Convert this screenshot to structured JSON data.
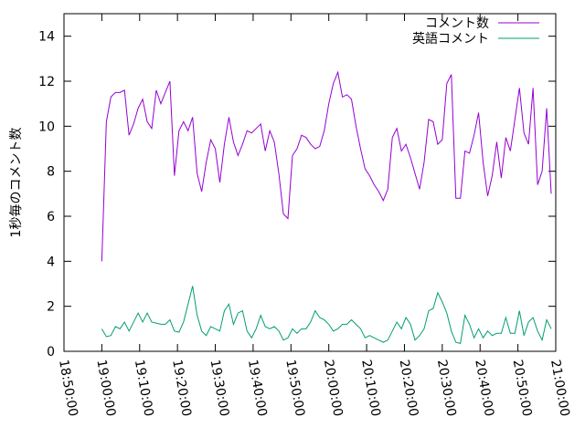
{
  "chart_data": {
    "type": "line",
    "y_label": "1秒毎のコメント数",
    "x": [
      "19:00:00",
      "19:01:12",
      "19:02:24",
      "19:03:36",
      "19:04:48",
      "19:06:00",
      "19:07:12",
      "19:08:24",
      "19:09:36",
      "19:10:48",
      "19:12:00",
      "19:13:12",
      "19:14:24",
      "19:15:36",
      "19:16:48",
      "19:18:00",
      "19:19:12",
      "19:20:24",
      "19:21:36",
      "19:22:48",
      "19:24:00",
      "19:25:12",
      "19:26:24",
      "19:27:36",
      "19:28:48",
      "19:30:00",
      "19:31:12",
      "19:32:24",
      "19:33:36",
      "19:34:48",
      "19:36:00",
      "19:37:12",
      "19:38:24",
      "19:39:36",
      "19:40:48",
      "19:42:00",
      "19:43:12",
      "19:44:24",
      "19:45:36",
      "19:46:48",
      "19:48:00",
      "19:49:12",
      "19:50:24",
      "19:51:36",
      "19:52:48",
      "19:54:00",
      "19:55:12",
      "19:56:24",
      "19:57:36",
      "19:58:48",
      "20:00:00",
      "20:01:12",
      "20:02:24",
      "20:03:36",
      "20:04:48",
      "20:06:00",
      "20:07:12",
      "20:08:24",
      "20:09:36",
      "20:10:48",
      "20:12:00",
      "20:13:12",
      "20:14:24",
      "20:15:36",
      "20:16:48",
      "20:18:00",
      "20:19:12",
      "20:20:24",
      "20:21:36",
      "20:22:48",
      "20:24:00",
      "20:25:12",
      "20:26:24",
      "20:27:36",
      "20:28:48",
      "20:30:00",
      "20:31:12",
      "20:32:24",
      "20:33:36",
      "20:34:48",
      "20:36:00",
      "20:37:12",
      "20:38:24",
      "20:39:36",
      "20:40:48",
      "20:42:00",
      "20:43:12",
      "20:44:24",
      "20:45:36",
      "20:46:48",
      "20:48:00",
      "20:49:12",
      "20:50:24",
      "20:51:36",
      "20:52:48",
      "20:54:00",
      "20:55:12",
      "20:56:24",
      "20:57:36",
      "20:58:48"
    ],
    "series": [
      {
        "name": "コメント数",
        "color": "#9400d3",
        "values": [
          4.0,
          10.2,
          11.3,
          11.5,
          11.5,
          11.6,
          9.6,
          10.1,
          10.8,
          11.2,
          10.2,
          9.9,
          11.6,
          11.0,
          11.5,
          12.0,
          7.8,
          9.8,
          10.2,
          9.8,
          10.4,
          7.9,
          7.1,
          8.4,
          9.4,
          9.0,
          7.5,
          9.2,
          10.4,
          9.3,
          8.7,
          9.2,
          9.8,
          9.7,
          9.9,
          10.1,
          8.9,
          9.8,
          9.3,
          7.9,
          6.1,
          5.9,
          8.7,
          9.0,
          9.6,
          9.5,
          9.2,
          9.0,
          9.1,
          9.8,
          11.0,
          11.9,
          12.4,
          11.3,
          11.4,
          11.2,
          10.0,
          9.0,
          8.1,
          7.8,
          7.4,
          7.1,
          6.7,
          7.2,
          9.5,
          9.9,
          8.9,
          9.2,
          8.6,
          7.9,
          7.2,
          8.4,
          10.3,
          10.2,
          9.2,
          9.4,
          11.9,
          12.3,
          6.8,
          6.8,
          8.9,
          8.8,
          9.6,
          10.6,
          8.4,
          6.9,
          7.8,
          9.3,
          7.7,
          9.5,
          8.9,
          10.3,
          11.7,
          9.7,
          9.2,
          11.7,
          7.4,
          8.0,
          10.8,
          7.0
        ]
      },
      {
        "name": "英語コメント",
        "color": "#009e73",
        "values": [
          1.0,
          0.65,
          0.7,
          1.1,
          1.0,
          1.3,
          0.9,
          1.3,
          1.7,
          1.3,
          1.7,
          1.3,
          1.25,
          1.2,
          1.2,
          1.4,
          0.9,
          0.85,
          1.3,
          2.1,
          2.9,
          1.6,
          0.9,
          0.7,
          1.1,
          1.0,
          0.9,
          1.8,
          2.1,
          1.2,
          1.7,
          1.8,
          0.9,
          0.6,
          1.0,
          1.6,
          1.1,
          1.0,
          1.1,
          0.9,
          0.5,
          0.6,
          1.0,
          0.8,
          1.0,
          1.0,
          1.3,
          1.8,
          1.5,
          1.4,
          1.2,
          0.9,
          1.0,
          1.2,
          1.2,
          1.4,
          1.2,
          1.0,
          0.6,
          0.7,
          0.6,
          0.5,
          0.4,
          0.5,
          0.9,
          1.3,
          1.0,
          1.5,
          1.2,
          0.5,
          0.7,
          1.0,
          1.8,
          1.9,
          2.6,
          2.2,
          1.7,
          0.9,
          0.4,
          0.35,
          1.6,
          1.2,
          0.6,
          1.0,
          0.6,
          0.9,
          0.7,
          0.8,
          0.8,
          1.5,
          0.8,
          0.8,
          1.8,
          0.7,
          1.3,
          1.5,
          0.9,
          0.5,
          1.4,
          1.0
        ]
      }
    ],
    "xlim": [
      "18:50:00",
      "21:00:00"
    ],
    "xticks": [
      "18:50:00",
      "19:00:00",
      "19:10:00",
      "19:20:00",
      "19:30:00",
      "19:40:00",
      "19:50:00",
      "20:00:00",
      "20:10:00",
      "20:20:00",
      "20:30:00",
      "20:40:00",
      "20:50:00",
      "21:00:00"
    ],
    "ylim": [
      0,
      15
    ],
    "yticks": [
      0,
      2,
      4,
      6,
      8,
      10,
      12,
      14
    ],
    "legend": "top-right"
  }
}
